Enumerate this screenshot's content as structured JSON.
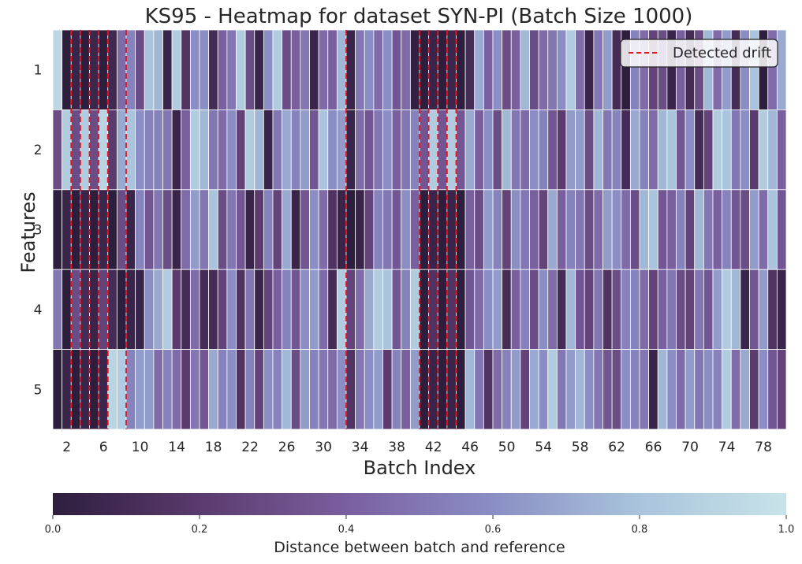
{
  "chart_data": {
    "type": "heatmap",
    "title": "KS95 - Heatmap for dataset SYN-PI (Batch Size 1000)",
    "xlabel": "Batch Index",
    "ylabel": "Features",
    "x_tick_labels": [
      "2",
      "6",
      "10",
      "14",
      "18",
      "22",
      "26",
      "30",
      "34",
      "38",
      "42",
      "46",
      "50",
      "54",
      "58",
      "62",
      "66",
      "70",
      "74",
      "78"
    ],
    "y_tick_labels": [
      "1",
      "2",
      "3",
      "4",
      "5"
    ],
    "x_range": [
      1,
      80
    ],
    "colorbar": {
      "label": "Distance between batch and reference",
      "ticks": [
        "0.0",
        "0.2",
        "0.4",
        "0.6",
        "0.8",
        "1.0"
      ],
      "range": [
        0.0,
        1.0
      ],
      "colors": [
        "#2d1e3e",
        "#5b3a6d",
        "#7a5f9f",
        "#8a8ec4",
        "#a9c4dc",
        "#c8e3e8"
      ]
    },
    "legend": {
      "label": "Detected drift",
      "placement": "top-right",
      "color": "#e8141e"
    },
    "drift_batches": [
      2.5,
      3.5,
      4.5,
      5.5,
      6.5,
      8.5,
      32.5,
      40.5,
      41.5,
      42.5,
      43.5,
      44.5
    ],
    "rows": [
      [
        0.92,
        0.0,
        0.05,
        0.0,
        0.06,
        0.0,
        0.08,
        0.45,
        0.55,
        0.3,
        0.8,
        0.75,
        0.05,
        0.85,
        0.15,
        0.6,
        0.6,
        0.1,
        0.4,
        0.5,
        0.85,
        0.3,
        0.05,
        0.6,
        0.85,
        0.3,
        0.4,
        0.5,
        0.05,
        0.45,
        0.4,
        0.75,
        0.05,
        0.5,
        0.6,
        0.45,
        0.6,
        0.35,
        0.45,
        0.02,
        0.0,
        0.05,
        0.0,
        0.06,
        0.0,
        0.1,
        0.7,
        0.4,
        0.6,
        0.3,
        0.4,
        0.75,
        0.3,
        0.45,
        0.5,
        0.6,
        0.85,
        0.45,
        0.05,
        0.5,
        0.65,
        0.1,
        0.0,
        0.55,
        0.45,
        0.25,
        0.3,
        0.05,
        0.4,
        0.1,
        0.3,
        0.75,
        0.45,
        0.65,
        0.1,
        0.6,
        0.8,
        0.0,
        0.45,
        0.7
      ],
      [
        0.3,
        0.85,
        0.3,
        0.85,
        0.3,
        0.9,
        0.2,
        0.7,
        0.8,
        0.6,
        0.55,
        0.55,
        0.5,
        0.05,
        0.4,
        0.85,
        0.75,
        0.5,
        0.45,
        0.6,
        0.25,
        0.85,
        0.75,
        0.05,
        0.5,
        0.7,
        0.55,
        0.65,
        0.35,
        0.8,
        0.6,
        0.65,
        0.05,
        0.45,
        0.35,
        0.5,
        0.6,
        0.4,
        0.5,
        0.55,
        0.35,
        0.85,
        0.35,
        0.85,
        0.35,
        0.7,
        0.4,
        0.6,
        0.3,
        0.75,
        0.5,
        0.45,
        0.6,
        0.55,
        0.35,
        0.2,
        0.65,
        0.65,
        0.3,
        0.75,
        0.5,
        0.55,
        0.1,
        0.7,
        0.55,
        0.45,
        0.75,
        0.8,
        0.35,
        0.6,
        0.1,
        0.25,
        0.85,
        0.8,
        0.5,
        0.6,
        0.2,
        0.85,
        0.75,
        0.4
      ],
      [
        0.0,
        0.05,
        0.0,
        0.05,
        0.0,
        0.06,
        0.0,
        0.3,
        0.05,
        0.55,
        0.35,
        0.5,
        0.3,
        0.05,
        0.45,
        0.65,
        0.5,
        0.8,
        0.3,
        0.5,
        0.35,
        0.05,
        0.2,
        0.55,
        0.25,
        0.7,
        0.05,
        0.35,
        0.6,
        0.45,
        0.15,
        0.05,
        0.0,
        0.05,
        0.25,
        0.55,
        0.5,
        0.35,
        0.6,
        0.4,
        0.0,
        0.05,
        0.0,
        0.05,
        0.0,
        0.4,
        0.3,
        0.65,
        0.55,
        0.25,
        0.6,
        0.5,
        0.4,
        0.25,
        0.7,
        0.4,
        0.55,
        0.5,
        0.3,
        0.45,
        0.65,
        0.6,
        0.45,
        0.3,
        0.75,
        0.8,
        0.35,
        0.4,
        0.55,
        0.25,
        0.75,
        0.5,
        0.4,
        0.55,
        0.35,
        0.3,
        0.65,
        0.45,
        0.8,
        0.35
      ],
      [
        0.5,
        0.0,
        0.3,
        0.1,
        0.05,
        0.25,
        0.1,
        0.0,
        0.05,
        0.05,
        0.6,
        0.7,
        0.85,
        0.2,
        0.1,
        0.45,
        0.1,
        0.1,
        0.25,
        0.6,
        0.15,
        0.5,
        0.05,
        0.25,
        0.4,
        0.55,
        0.35,
        0.6,
        0.65,
        0.45,
        0.1,
        0.85,
        0.25,
        0.45,
        0.7,
        0.85,
        0.8,
        0.35,
        0.55,
        0.85,
        0.0,
        0.15,
        0.0,
        0.15,
        0.0,
        0.35,
        0.45,
        0.6,
        0.65,
        0.1,
        0.4,
        0.55,
        0.3,
        0.6,
        0.45,
        0.1,
        0.75,
        0.35,
        0.25,
        0.5,
        0.15,
        0.3,
        0.55,
        0.55,
        0.45,
        0.25,
        0.4,
        0.5,
        0.3,
        0.25,
        0.5,
        0.35,
        0.65,
        0.85,
        0.75,
        0.05,
        0.35,
        0.65,
        0.15,
        0.05
      ],
      [
        0.0,
        0.05,
        0.0,
        0.05,
        0.0,
        0.06,
        0.9,
        0.85,
        0.55,
        0.65,
        0.65,
        0.45,
        0.55,
        0.45,
        0.2,
        0.5,
        0.35,
        0.7,
        0.55,
        0.6,
        0.15,
        0.55,
        0.25,
        0.6,
        0.55,
        0.75,
        0.3,
        0.65,
        0.55,
        0.5,
        0.45,
        0.6,
        0.15,
        0.5,
        0.6,
        0.65,
        0.2,
        0.55,
        0.4,
        0.65,
        0.0,
        0.05,
        0.0,
        0.05,
        0.0,
        0.75,
        0.5,
        0.15,
        0.45,
        0.55,
        0.65,
        0.25,
        0.7,
        0.6,
        0.85,
        0.5,
        0.65,
        0.75,
        0.6,
        0.5,
        0.35,
        0.3,
        0.6,
        0.55,
        0.5,
        0.05,
        0.75,
        0.6,
        0.45,
        0.65,
        0.5,
        0.6,
        0.55,
        0.85,
        0.45,
        0.7,
        0.2,
        0.6,
        0.35,
        0.25
      ]
    ]
  }
}
